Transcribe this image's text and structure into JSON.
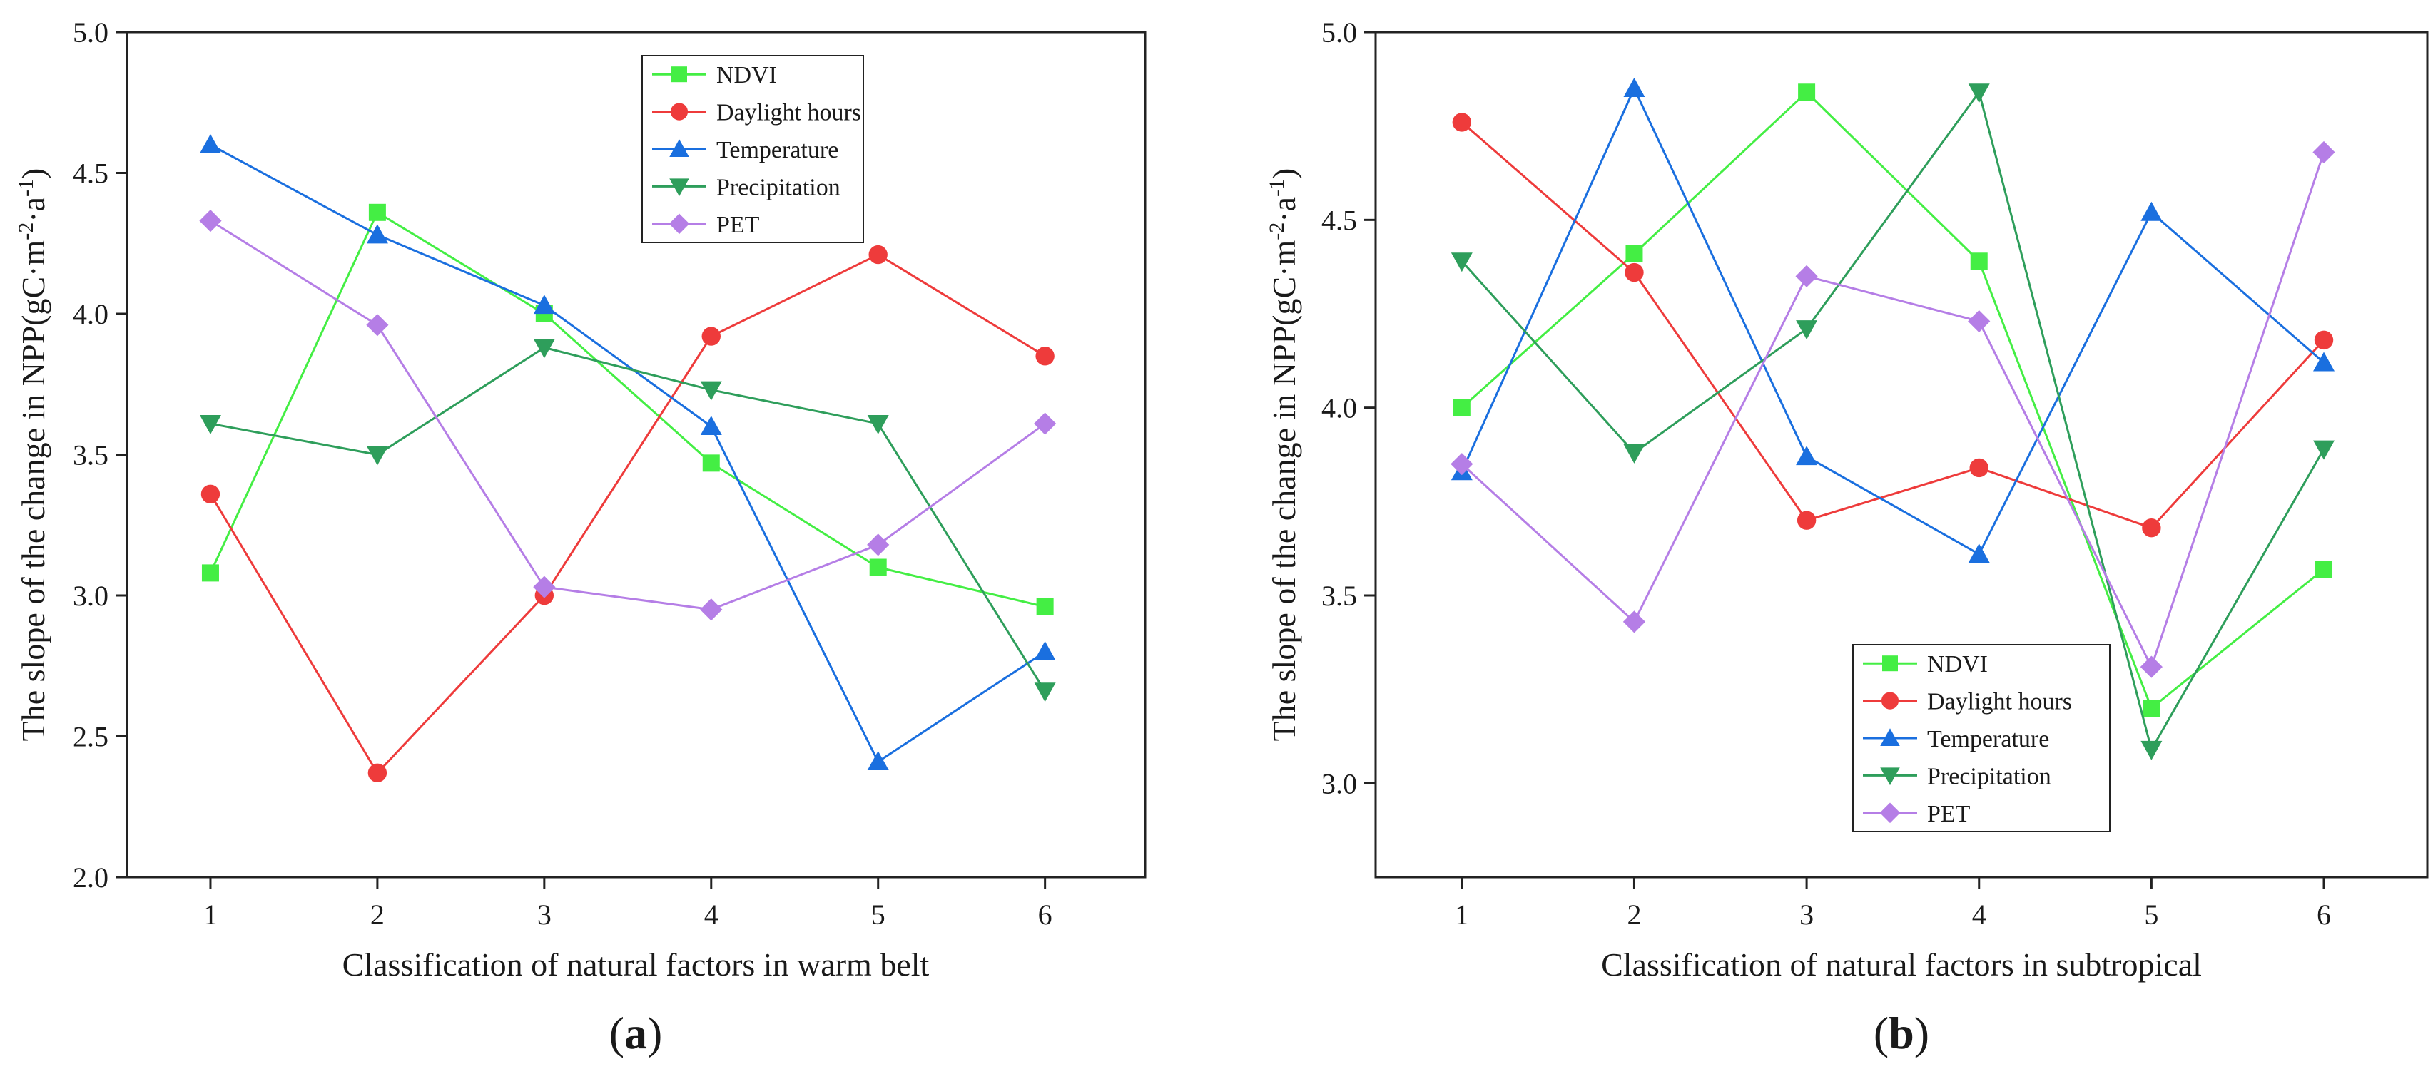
{
  "chart_data": [
    {
      "type": "line",
      "panel_label": {
        "open": "(",
        "letter": "a",
        "close": ")"
      },
      "xlabel": "Classification of natural factors in warm belt",
      "ylabel_parts": [
        "The slope of the change in NPP(gC·m",
        "-2",
        "·a",
        "-1",
        ")"
      ],
      "x": [
        1,
        2,
        3,
        4,
        5,
        6
      ],
      "x_tick_labels": [
        "1",
        "2",
        "3",
        "4",
        "5",
        "6"
      ],
      "xlim": [
        0.5,
        6.6
      ],
      "ylim": [
        2.0,
        5.0
      ],
      "y_ticks": [
        2.0,
        2.5,
        3.0,
        3.5,
        4.0,
        4.5,
        5.0
      ],
      "y_tick_labels": [
        "2.0",
        "2.5",
        "3.0",
        "3.5",
        "4.0",
        "4.5",
        "5.0"
      ],
      "legend_position": "top-center",
      "series": [
        {
          "name": "NDVI",
          "color": "#44ee44",
          "marker": "square",
          "values": [
            3.08,
            4.36,
            4.0,
            3.47,
            3.1,
            2.96
          ]
        },
        {
          "name": "Daylight hours",
          "color": "#ee3b3b",
          "marker": "circle",
          "values": [
            3.36,
            2.37,
            3.0,
            3.92,
            4.21,
            3.85
          ]
        },
        {
          "name": "Temperature",
          "color": "#1a6fdf",
          "marker": "triangle-up",
          "values": [
            4.6,
            4.28,
            4.03,
            3.6,
            2.41,
            2.8
          ]
        },
        {
          "name": "Precipitation",
          "color": "#2e9e5b",
          "marker": "triangle-down",
          "values": [
            3.61,
            3.5,
            3.88,
            3.73,
            3.61,
            2.66
          ]
        },
        {
          "name": "PET",
          "color": "#b57ee6",
          "marker": "diamond",
          "values": [
            4.33,
            3.96,
            3.03,
            2.95,
            3.18,
            3.61
          ]
        }
      ]
    },
    {
      "type": "line",
      "panel_label": {
        "open": "(",
        "letter": "b",
        "close": ")"
      },
      "xlabel": "Classification of natural factors in subtropical",
      "ylabel_parts": [
        "The slope of the change in NPP(gC·m",
        "-2",
        "·a",
        "-1",
        ")"
      ],
      "x": [
        1,
        2,
        3,
        4,
        5,
        6
      ],
      "x_tick_labels": [
        "1",
        "2",
        "3",
        "4",
        "5",
        "6"
      ],
      "xlim": [
        0.5,
        6.6
      ],
      "ylim": [
        2.75,
        5.0
      ],
      "y_ticks": [
        3.0,
        3.5,
        4.0,
        4.5,
        5.0
      ],
      "y_tick_labels": [
        "3.0",
        "3.5",
        "4.0",
        "4.5",
        "5.0"
      ],
      "legend_position": "bottom-right",
      "series": [
        {
          "name": "NDVI",
          "color": "#44ee44",
          "marker": "square",
          "values": [
            4.0,
            4.41,
            4.84,
            4.39,
            3.2,
            3.57
          ]
        },
        {
          "name": "Daylight hours",
          "color": "#ee3b3b",
          "marker": "circle",
          "values": [
            4.76,
            4.36,
            3.7,
            3.84,
            3.68,
            4.18
          ]
        },
        {
          "name": "Temperature",
          "color": "#1a6fdf",
          "marker": "triangle-up",
          "values": [
            3.83,
            4.85,
            3.87,
            3.61,
            4.52,
            4.12
          ]
        },
        {
          "name": "Precipitation",
          "color": "#2e9e5b",
          "marker": "triangle-down",
          "values": [
            4.39,
            3.88,
            4.21,
            4.84,
            3.09,
            3.89
          ]
        },
        {
          "name": "PET",
          "color": "#b57ee6",
          "marker": "diamond",
          "values": [
            3.85,
            3.43,
            4.35,
            4.23,
            3.31,
            4.68
          ]
        }
      ]
    }
  ]
}
